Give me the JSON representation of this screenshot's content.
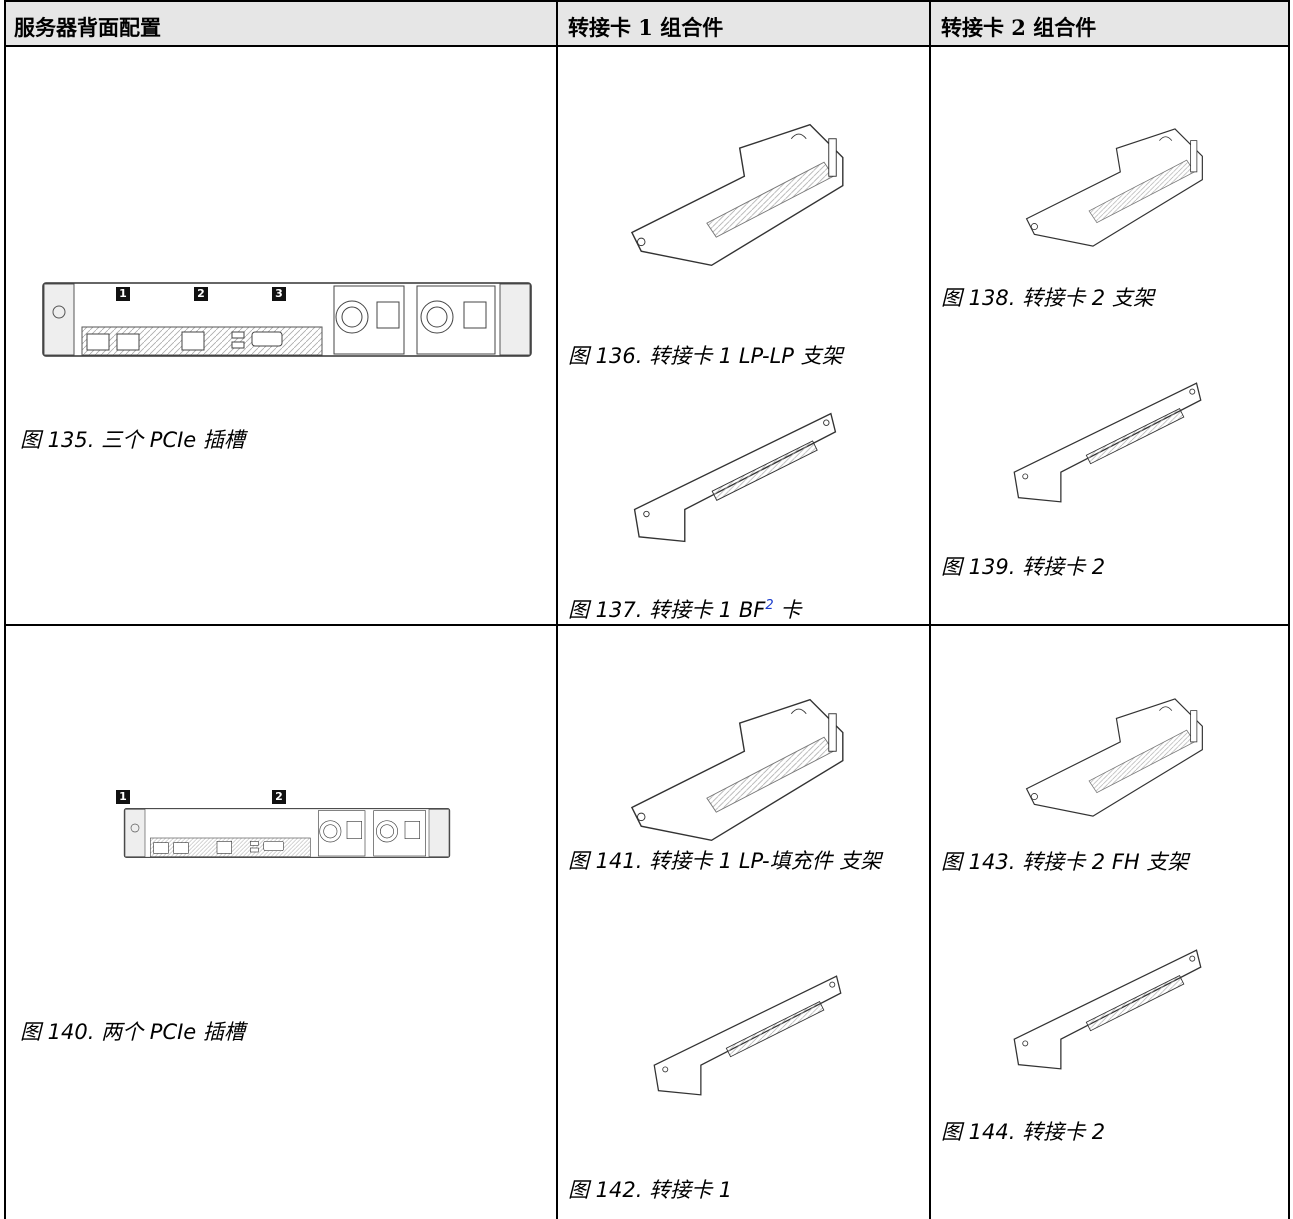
{
  "header": [
    "服务器背面配置",
    "转接卡 1 组合件",
    "转接卡 2 组合件"
  ],
  "rows": [
    {
      "config": {
        "callouts": [
          "1",
          "2",
          "3"
        ],
        "caption": "图 135. 三个 PCIe 插槽"
      },
      "riser1": [
        {
          "caption": "图 136. 转接卡 1 LP-LP 支架"
        },
        {
          "caption": "图 137. 转接卡 1 BF",
          "superscript": "2",
          "caption_suffix": " 卡"
        }
      ],
      "riser2": [
        {
          "caption": "图 138. 转接卡 2 支架"
        },
        {
          "caption": "图 139. 转接卡 2"
        }
      ]
    },
    {
      "config": {
        "callouts": [
          "1",
          "2"
        ],
        "caption": "图 140. 两个 PCIe 插槽"
      },
      "riser1": [
        {
          "caption": "图 141. 转接卡 1 LP-填充件 支架"
        },
        {
          "caption": "图 142. 转接卡 1"
        }
      ],
      "riser2": [
        {
          "caption": "图 143. 转接卡 2 FH 支架"
        },
        {
          "caption": "图 144. 转接卡 2"
        }
      ]
    }
  ]
}
